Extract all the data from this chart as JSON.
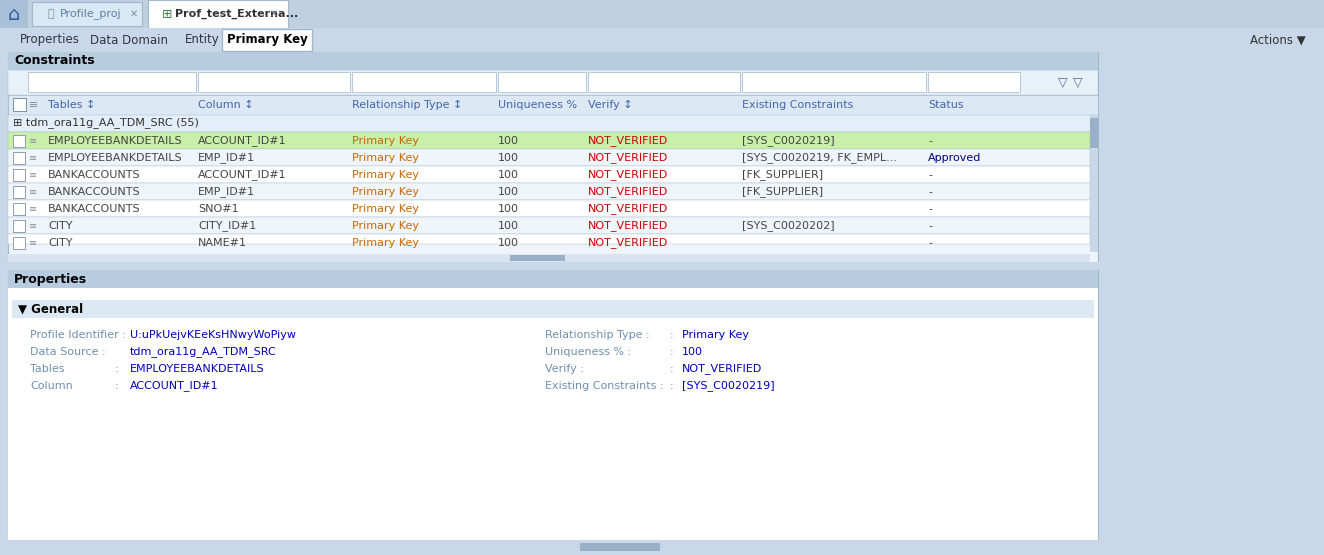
{
  "bg_color": "#c8d8e8",
  "top_bar_bg": "#c0d0e0",
  "tab_inactive_bg": "#d8e8f4",
  "tab_active_bg": "#ffffff",
  "nav_bar_bg": "#c8d8e8",
  "section_outer_bg": "#dce8f2",
  "section_header_bg": "#b8cce0",
  "filter_row_bg": "#e8f0f8",
  "filter_box_bg": "#ffffff",
  "table_header_bg": "#dce8f4",
  "group_row_bg": "#e4eef8",
  "row_selected_bg": "#c8f0a8",
  "row_white_bg": "#ffffff",
  "row_light_bg": "#f0f5fc",
  "scrollbar_bg": "#c8d8e8",
  "scrollbar_thumb": "#9ab0c8",
  "props_outer_bg": "#dce8f2",
  "props_header_bg": "#b8cce0",
  "props_body_bg": "#ffffff",
  "general_header_bg": "#dce8f4",
  "label_color": "#7090b0",
  "value_color": "#0000bb",
  "rel_type_color": "#cc6600",
  "verify_color": "#cc0000",
  "header_text_color": "#4466aa",
  "black": "#000000",
  "dark_gray": "#444444",
  "border_color": "#a0b8cc",
  "title": "Prof_test_Externa...",
  "tab_labels": [
    "Properties",
    "Data Domain",
    "Entity",
    "Primary Key"
  ],
  "active_tab": "Primary Key",
  "actions_text": "Actions ▼",
  "constraints_header": "Constraints",
  "table_columns": [
    "Tables ↕",
    "Column ↕",
    "Relationship Type ↕",
    "Uniqueness %",
    "Verify ↕",
    "Existing Constraints",
    "Status"
  ],
  "group_label": "tdm_ora11g_AA_TDM_SRC (55)",
  "rows": [
    {
      "table": "EMPLOYEEBANKDETAILS",
      "column": "ACCOUNT_ID#1",
      "rel_type": "Primary Key",
      "uniqueness": "100",
      "verify": "NOT_VERIFIED",
      "existing": "[SYS_C0020219]",
      "status": "-",
      "selected": true
    },
    {
      "table": "EMPLOYEEBANKDETAILS",
      "column": "EMP_ID#1",
      "rel_type": "Primary Key",
      "uniqueness": "100",
      "verify": "NOT_VERIFIED",
      "existing": "[SYS_C0020219, FK_EMPL...",
      "status": "Approved",
      "selected": false
    },
    {
      "table": "BANKACCOUNTS",
      "column": "ACCOUNT_ID#1",
      "rel_type": "Primary Key",
      "uniqueness": "100",
      "verify": "NOT_VERIFIED",
      "existing": "[FK_SUPPLIER]",
      "status": "-",
      "selected": false
    },
    {
      "table": "BANKACCOUNTS",
      "column": "EMP_ID#1",
      "rel_type": "Primary Key",
      "uniqueness": "100",
      "verify": "NOT_VERIFIED",
      "existing": "[FK_SUPPLIER]",
      "status": "-",
      "selected": false
    },
    {
      "table": "BANKACCOUNTS",
      "column": "SNO#1",
      "rel_type": "Primary Key",
      "uniqueness": "100",
      "verify": "NOT_VERIFIED",
      "existing": "",
      "status": "-",
      "selected": false
    },
    {
      "table": "CITY",
      "column": "CITY_ID#1",
      "rel_type": "Primary Key",
      "uniqueness": "100",
      "verify": "NOT_VERIFIED",
      "existing": "[SYS_C0020202]",
      "status": "-",
      "selected": false
    },
    {
      "table": "CITY",
      "column": "NAME#1",
      "rel_type": "Primary Key",
      "uniqueness": "100",
      "verify": "NOT_VERIFIED",
      "existing": "",
      "status": "-",
      "selected": false,
      "partial": true
    }
  ],
  "properties_header": "Properties",
  "general_label": "General",
  "prop_left": [
    {
      "label": "Profile Identifier :",
      "value": "U:uPkUejvKEeKsHNwyWoPiyw"
    },
    {
      "label": "Data Source :",
      "value": "tdm_ora11g_AA_TDM_SRC"
    },
    {
      "label": "Tables",
      "value": "EMPLOYEEBANKDETAILS"
    },
    {
      "label": "Column",
      "value": "ACCOUNT_ID#1"
    }
  ],
  "prop_right": [
    {
      "label": "Relationship Type :",
      "value": "Primary Key"
    },
    {
      "label": "Uniqueness % :",
      "value": "100"
    },
    {
      "label": "Verify :",
      "value": "NOT_VERIFIED"
    },
    {
      "label": "Existing Constraints :",
      "value": "[SYS_C0020219]"
    }
  ]
}
